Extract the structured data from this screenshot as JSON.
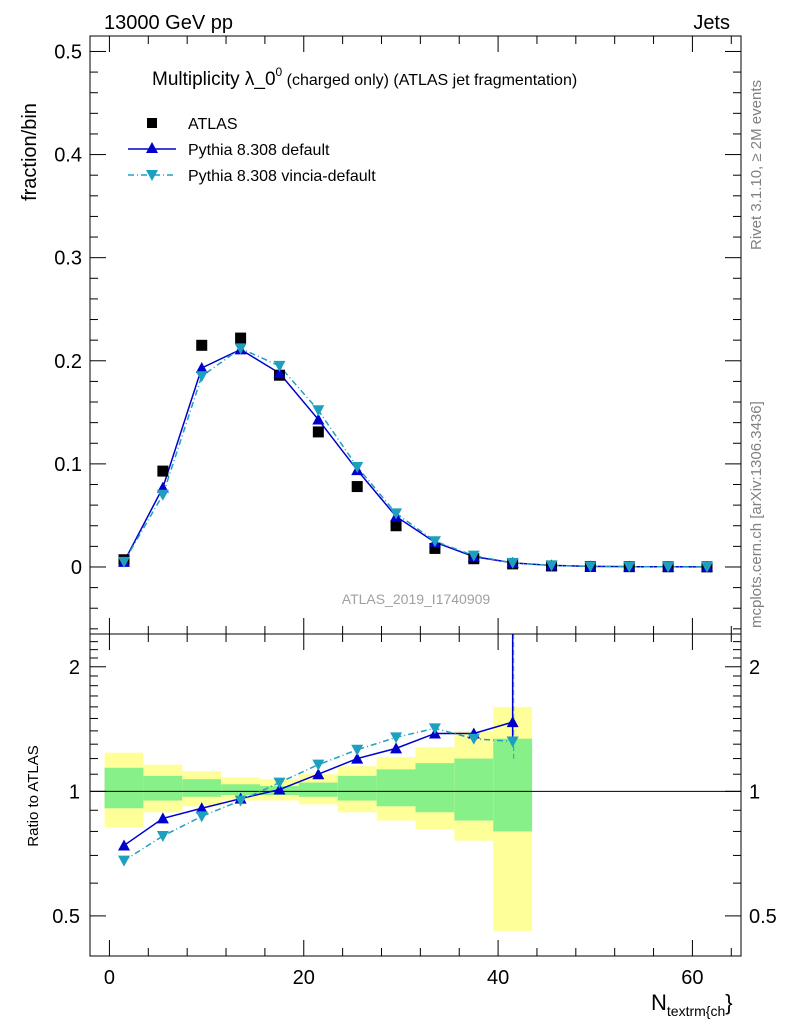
{
  "header": {
    "energy": "13000 GeV pp",
    "process": "Jets"
  },
  "title_main": "Multiplicity λ_0",
  "title_sup": "0",
  "title_rest": " (charged only) (ATLAS jet fragmentation)",
  "side_labels": {
    "rivet": "Rivet 3.1.10, ≥ 2M events",
    "mcplots": "mcplots.cern.ch [arXiv:1306.3436]"
  },
  "analysis_id": "ATLAS_2019_I1740909",
  "colors": {
    "data": "#000000",
    "default": "#0000cc",
    "vincia": "#1f9fbf",
    "band_outer": "#ffff99",
    "band_inner": "#88f088"
  },
  "chart_data": [
    {
      "type": "scatter",
      "panel": "main",
      "ylabel": "fraction/bin",
      "xlim": [
        -2,
        65
      ],
      "ylim": [
        -0.065,
        0.515
      ],
      "y_ticks": [
        0,
        0.1,
        0.2,
        0.3,
        0.4,
        0.5
      ],
      "y_tick_labels": [
        "0",
        "0.1",
        "0.2",
        "0.3",
        "0.4",
        "0.5"
      ],
      "legend": [
        "ATLAS",
        "Pythia 8.308 default",
        "Pythia 8.308 vincia-default"
      ],
      "legend_position": "top-left",
      "x": [
        1.5,
        5.5,
        9.5,
        13.5,
        17.5,
        21.5,
        25.5,
        29.5,
        33.5,
        37.5,
        41.5,
        45.5,
        49.5,
        53.5,
        57.5,
        61.5
      ],
      "series": [
        {
          "name": "ATLAS",
          "marker": "square",
          "values": [
            0.007,
            0.093,
            0.215,
            0.222,
            0.186,
            0.131,
            0.078,
            0.04,
            0.018,
            0.008,
            0.003,
            0.001,
            0.0005,
            0.0003,
            0.0002,
            0.0001
          ]
        },
        {
          "name": "Pythia 8.308 default",
          "marker": "triangle-up",
          "values": [
            0.005,
            0.077,
            0.193,
            0.211,
            0.188,
            0.143,
            0.094,
            0.049,
            0.024,
            0.01,
            0.004,
            0.0015,
            0.0006,
            0.0003,
            0.0002,
            0.0001
          ]
        },
        {
          "name": "Pythia 8.308 vincia-default",
          "marker": "triangle-down",
          "values": [
            0.005,
            0.07,
            0.185,
            0.212,
            0.195,
            0.152,
            0.097,
            0.052,
            0.025,
            0.011,
            0.004,
            0.0015,
            0.0006,
            0.0003,
            0.0002,
            0.0001
          ]
        }
      ]
    },
    {
      "type": "line",
      "panel": "ratio",
      "ylabel": "Ratio to ATLAS",
      "xlabel_main": "N",
      "xlabel_sub": "textrm{ch",
      "xlabel_close": "}",
      "xlim": [
        -2,
        65
      ],
      "ylim": [
        0.4,
        2.4
      ],
      "log_y": true,
      "y_ticks": [
        0.5,
        1,
        2
      ],
      "y_tick_labels": [
        "0.5",
        "1",
        "2"
      ],
      "x_ticks": [
        0,
        20,
        40,
        60
      ],
      "x_tick_labels": [
        "0",
        "20",
        "40",
        "60"
      ],
      "reference_line": 1,
      "bands": {
        "bin_edges": [
          -0.5,
          3.5,
          7.5,
          11.5,
          15.5,
          19.5,
          23.5,
          27.5,
          31.5,
          35.5,
          39.5,
          43.5
        ],
        "outer_lo": [
          0.82,
          0.89,
          0.92,
          0.95,
          0.95,
          0.93,
          0.89,
          0.85,
          0.81,
          0.76,
          0.46
        ],
        "outer_hi": [
          1.24,
          1.16,
          1.12,
          1.08,
          1.07,
          1.1,
          1.15,
          1.21,
          1.28,
          1.4,
          1.6
        ],
        "inner_lo": [
          0.91,
          0.95,
          0.97,
          0.98,
          0.98,
          0.97,
          0.95,
          0.92,
          0.89,
          0.85,
          0.8
        ],
        "inner_hi": [
          1.14,
          1.09,
          1.07,
          1.04,
          1.03,
          1.05,
          1.09,
          1.13,
          1.17,
          1.2,
          1.34
        ]
      },
      "x": [
        1.5,
        5.5,
        9.5,
        13.5,
        17.5,
        21.5,
        25.5,
        29.5,
        33.5,
        37.5,
        41.5
      ],
      "series": [
        {
          "name": "Pythia 8.308 default",
          "marker": "triangle-up",
          "values": [
            0.74,
            0.86,
            0.91,
            0.96,
            1.01,
            1.1,
            1.2,
            1.27,
            1.38,
            1.38,
            1.47
          ]
        },
        {
          "name": "Pythia 8.308 vincia-default",
          "marker": "triangle-down",
          "values": [
            0.68,
            0.78,
            0.87,
            0.95,
            1.05,
            1.16,
            1.26,
            1.35,
            1.42,
            1.34,
            1.32
          ]
        }
      ]
    }
  ]
}
